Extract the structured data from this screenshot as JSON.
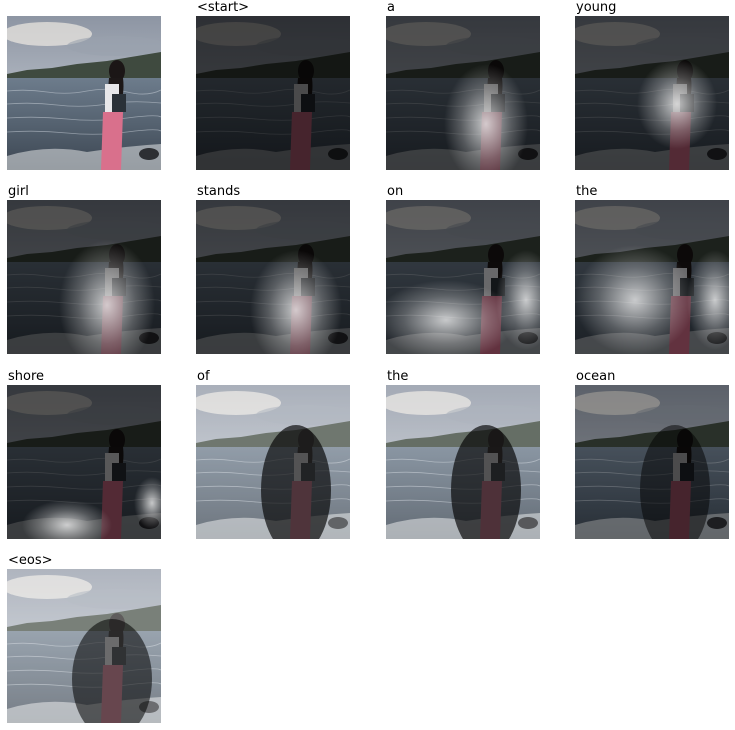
{
  "frames": [
    {
      "word": ""
    },
    {
      "word": "<start>"
    },
    {
      "word": "a"
    },
    {
      "word": "young"
    },
    {
      "word": "girl"
    },
    {
      "word": "stands"
    },
    {
      "word": "on"
    },
    {
      "word": "the"
    },
    {
      "word": "shore"
    },
    {
      "word": "of"
    },
    {
      "word": "the"
    },
    {
      "word": "ocean"
    },
    {
      "word": "<eos>"
    }
  ]
}
